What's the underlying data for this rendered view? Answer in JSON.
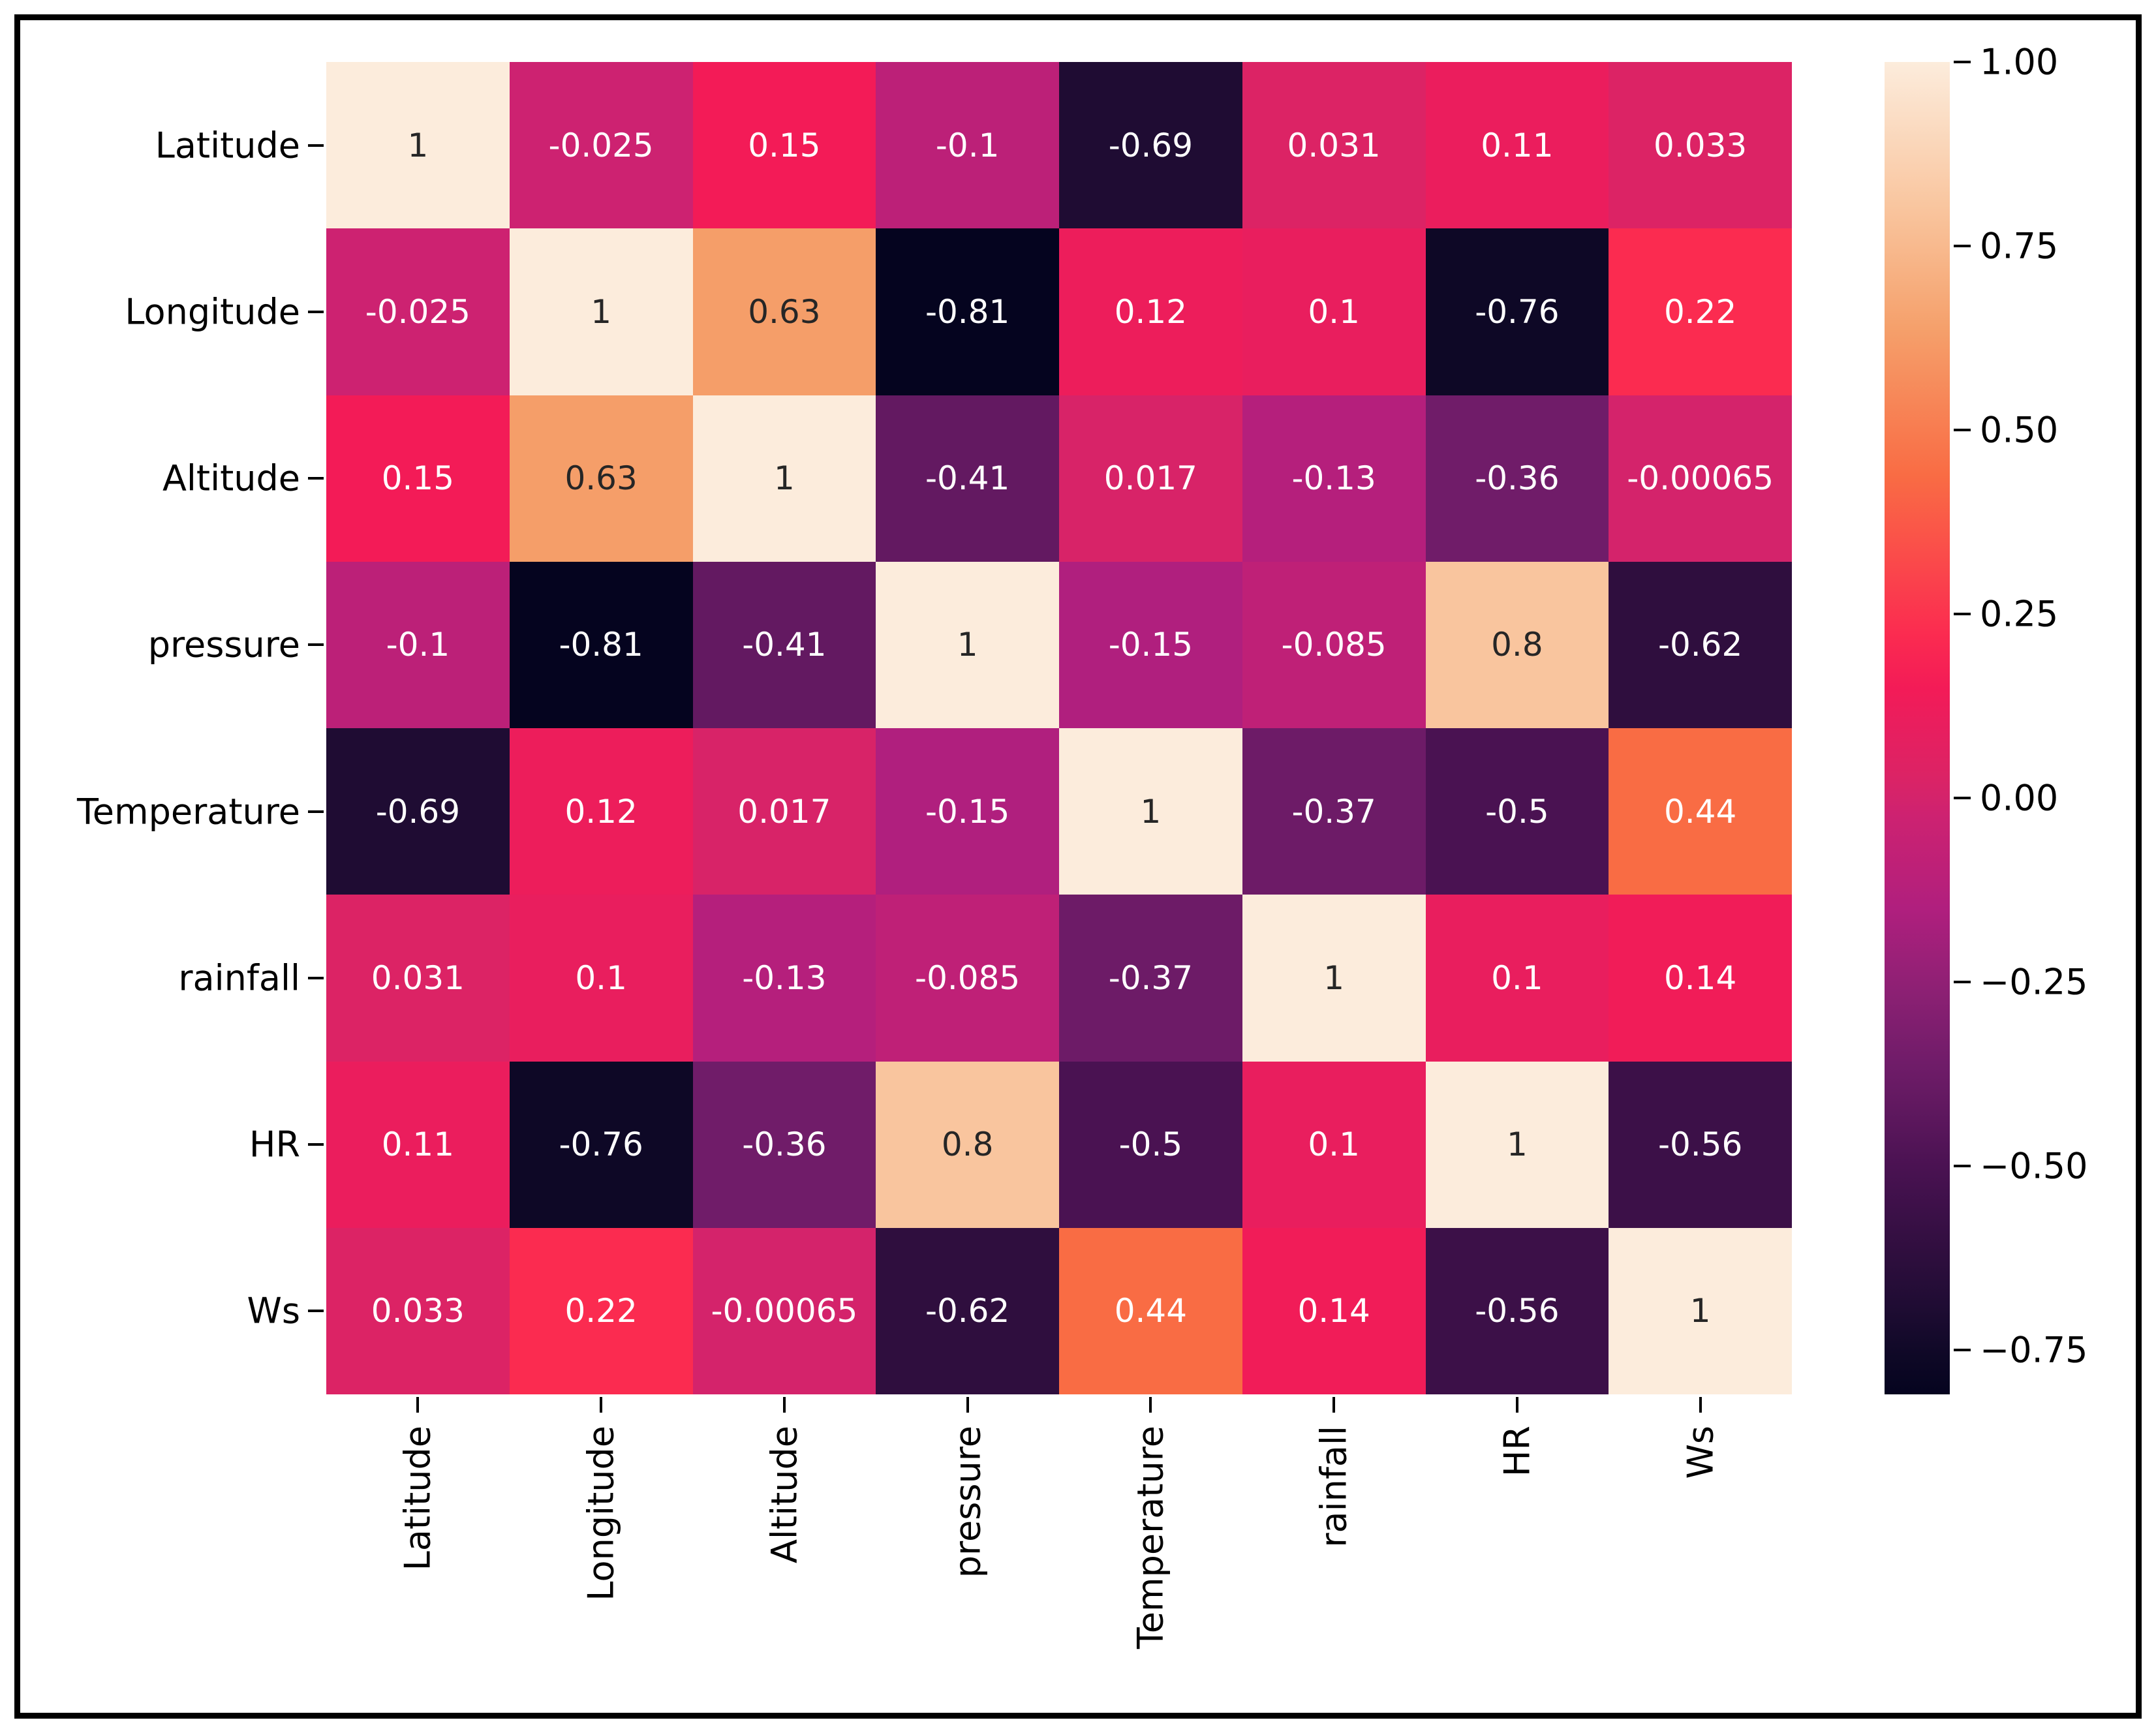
{
  "chart_data": {
    "type": "heatmap",
    "title": "",
    "xlabel": "",
    "ylabel": "",
    "variables": [
      "Latitude",
      "Longitude",
      "Altitude",
      "pressure",
      "Temperature",
      "rainfall",
      "HR",
      "Ws"
    ],
    "matrix": [
      [
        "1",
        "-0.025",
        "0.15",
        "-0.1",
        "-0.69",
        "0.031",
        "0.11",
        "0.033"
      ],
      [
        "-0.025",
        "1",
        "0.63",
        "-0.81",
        "0.12",
        "0.1",
        "-0.76",
        "0.22"
      ],
      [
        "0.15",
        "0.63",
        "1",
        "-0.41",
        "0.017",
        "-0.13",
        "-0.36",
        "-0.00065"
      ],
      [
        "-0.1",
        "-0.81",
        "-0.41",
        "1",
        "-0.15",
        "-0.085",
        "0.8",
        "-0.62"
      ],
      [
        "-0.69",
        "0.12",
        "0.017",
        "-0.15",
        "1",
        "-0.37",
        "-0.5",
        "0.44"
      ],
      [
        "0.031",
        "0.1",
        "-0.13",
        "-0.085",
        "-0.37",
        "1",
        "0.1",
        "0.14"
      ],
      [
        "0.11",
        "-0.76",
        "-0.36",
        "0.8",
        "-0.5",
        "0.1",
        "1",
        "-0.56"
      ],
      [
        "0.033",
        "0.22",
        "-0.00065",
        "-0.62",
        "0.44",
        "0.14",
        "-0.56",
        "1"
      ]
    ],
    "vmin": -0.81,
    "vmax": 1.0,
    "x_tick_rotation": 90,
    "grid": false,
    "legend_position": "right-colorbar",
    "colormap": {
      "name": "rocket",
      "stops": [
        [
          0.0,
          "#05041f"
        ],
        [
          0.028,
          "#0e0826"
        ],
        [
          0.066,
          "#1f0c33"
        ],
        [
          0.105,
          "#2f0e3e"
        ],
        [
          0.138,
          "#3c1048"
        ],
        [
          0.171,
          "#4a1252"
        ],
        [
          0.221,
          "#631961"
        ],
        [
          0.249,
          "#701c69"
        ],
        [
          0.3,
          "#8b2073"
        ],
        [
          0.365,
          "#b01f7e"
        ],
        [
          0.392,
          "#bc2078"
        ],
        [
          0.434,
          "#cd2271"
        ],
        [
          0.448,
          "#d4236b"
        ],
        [
          0.465,
          "#dc2365"
        ],
        [
          0.503,
          "#e91e5e"
        ],
        [
          0.53,
          "#f31b57"
        ],
        [
          0.57,
          "#fb2b50"
        ],
        [
          0.63,
          "#fa4c4a"
        ],
        [
          0.69,
          "#f96c44"
        ],
        [
          0.8,
          "#f5a06b"
        ],
        [
          0.89,
          "#f9c59e"
        ],
        [
          1.0,
          "#fcecdc"
        ]
      ]
    },
    "colorbar_ticks": [
      {
        "label": "1.00",
        "value": 1.0
      },
      {
        "label": "0.75",
        "value": 0.75
      },
      {
        "label": "0.50",
        "value": 0.5
      },
      {
        "label": "0.25",
        "value": 0.25
      },
      {
        "label": "0.00",
        "value": 0.0
      },
      {
        "label": "−0.25",
        "value": -0.25
      },
      {
        "label": "−0.50",
        "value": -0.5
      },
      {
        "label": "−0.75",
        "value": -0.75
      }
    ],
    "annotation_colors": {
      "on_light": "#262626",
      "on_dark": "#ffffff"
    },
    "frame_color": "#000000"
  }
}
